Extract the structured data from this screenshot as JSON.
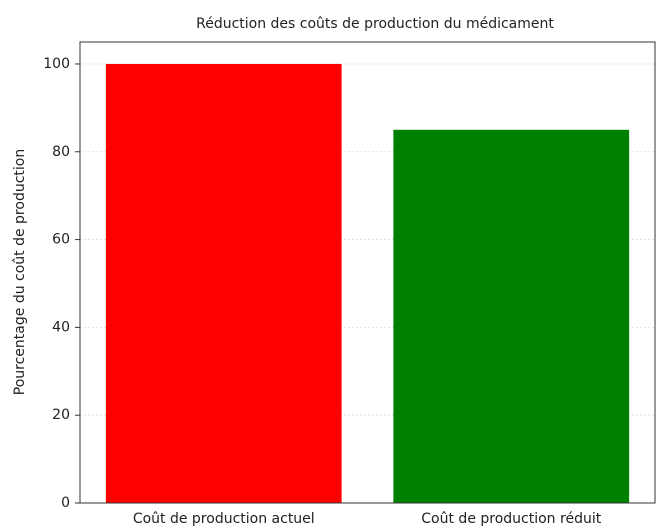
{
  "chart_data": {
    "type": "bar",
    "title": "Réduction des coûts de production du médicament",
    "ylabel": "Pourcentage du coût de production",
    "categories": [
      "Coût de production actuel",
      "Coût de production réduit"
    ],
    "values": [
      100,
      85
    ],
    "colors": [
      "#ff0000",
      "#008000"
    ],
    "ylim": [
      0,
      105
    ],
    "yticks": [
      0,
      20,
      40,
      60,
      80,
      100
    ],
    "grid": true
  }
}
